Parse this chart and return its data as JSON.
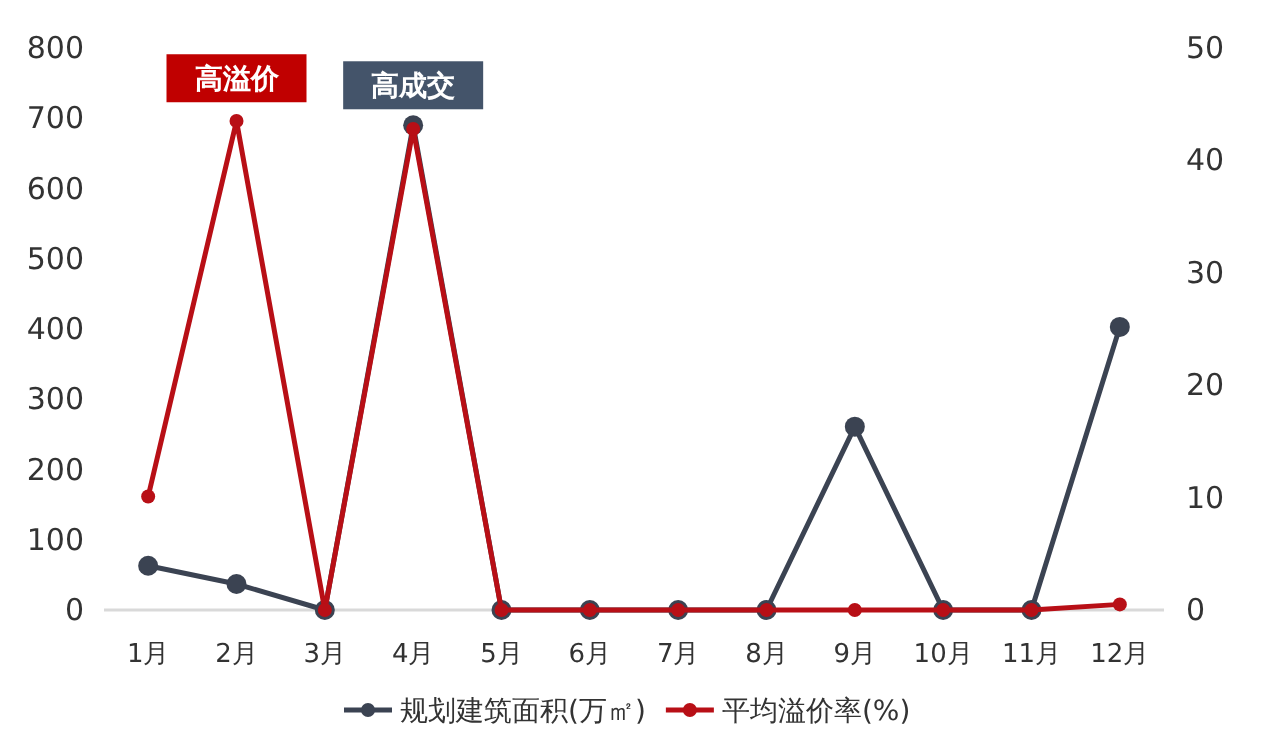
{
  "chart_data": {
    "type": "line",
    "categories": [
      "1月",
      "2月",
      "3月",
      "4月",
      "5月",
      "6月",
      "7月",
      "8月",
      "9月",
      "10月",
      "11月",
      "12月"
    ],
    "series": [
      {
        "name": "规划建筑面积(万㎡)",
        "color": "#3b4352",
        "values": [
          63,
          37,
          0,
          690,
          0,
          0,
          0,
          0,
          261,
          0,
          0,
          403
        ]
      },
      {
        "name": "平均溢价率(%)",
        "color": "#b80f16",
        "axis": "y2",
        "values": [
          10.1,
          43.5,
          0,
          42.8,
          0,
          0,
          0,
          0,
          0,
          0,
          0,
          0.5
        ]
      }
    ],
    "ylim": [
      0,
      800
    ],
    "yticks": [
      0,
      100,
      200,
      300,
      400,
      500,
      600,
      700,
      800
    ],
    "y2lim": [
      0,
      50
    ],
    "y2ticks": [
      0,
      10,
      20,
      30,
      40,
      50
    ],
    "annotations": [
      {
        "text": "高溢价",
        "x": "2月",
        "y": 700
      },
      {
        "text": "高成交",
        "x": "4月",
        "y": 690
      }
    ],
    "marker": "circle",
    "line_style": "solid",
    "grid": false,
    "legend": "bottom"
  }
}
